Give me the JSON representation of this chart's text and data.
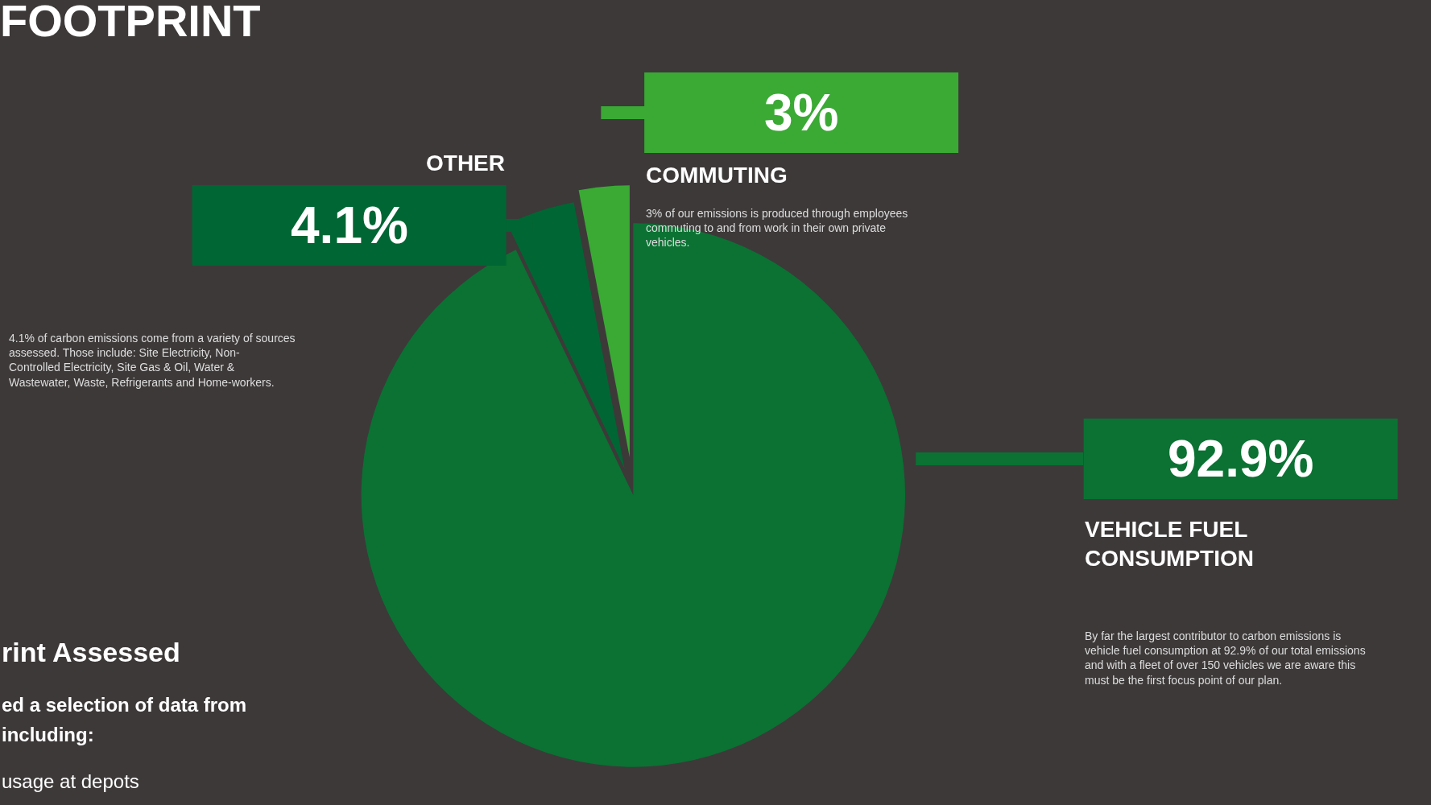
{
  "chart_data": {
    "type": "pie",
    "title": "FOOTPRINT",
    "categories": [
      "VEHICLE FUEL CONSUMPTION",
      "OTHER",
      "COMMUTING"
    ],
    "values": [
      92.9,
      4.1,
      3
    ],
    "colors": [
      "#0b7233",
      "#006633",
      "#3aaa35"
    ],
    "value_labels": [
      "92.9%",
      "4.1%",
      "3%"
    ],
    "annotations": [
      "By far the largest contributor to carbon emissions is vehicle fuel consumption at 92.9% of our total emissions and with a fleet of over 150 vehicles we are aware this must be the first focus point of our plan.",
      "4.1% of carbon emissions come from a variety of sources assessed. Those include: Site Electricity, Non-Controlled Electricity, Site Gas & Oil, Water & Wastewater, Waste, Refrigerants and Home-workers.",
      "3% of our emissions is produced through employees commuting to and from work in their own private vehicles.",
      "rint Assessed",
      "ed a selection of data from",
      "including:",
      "usage at depots"
    ],
    "legend": false
  }
}
